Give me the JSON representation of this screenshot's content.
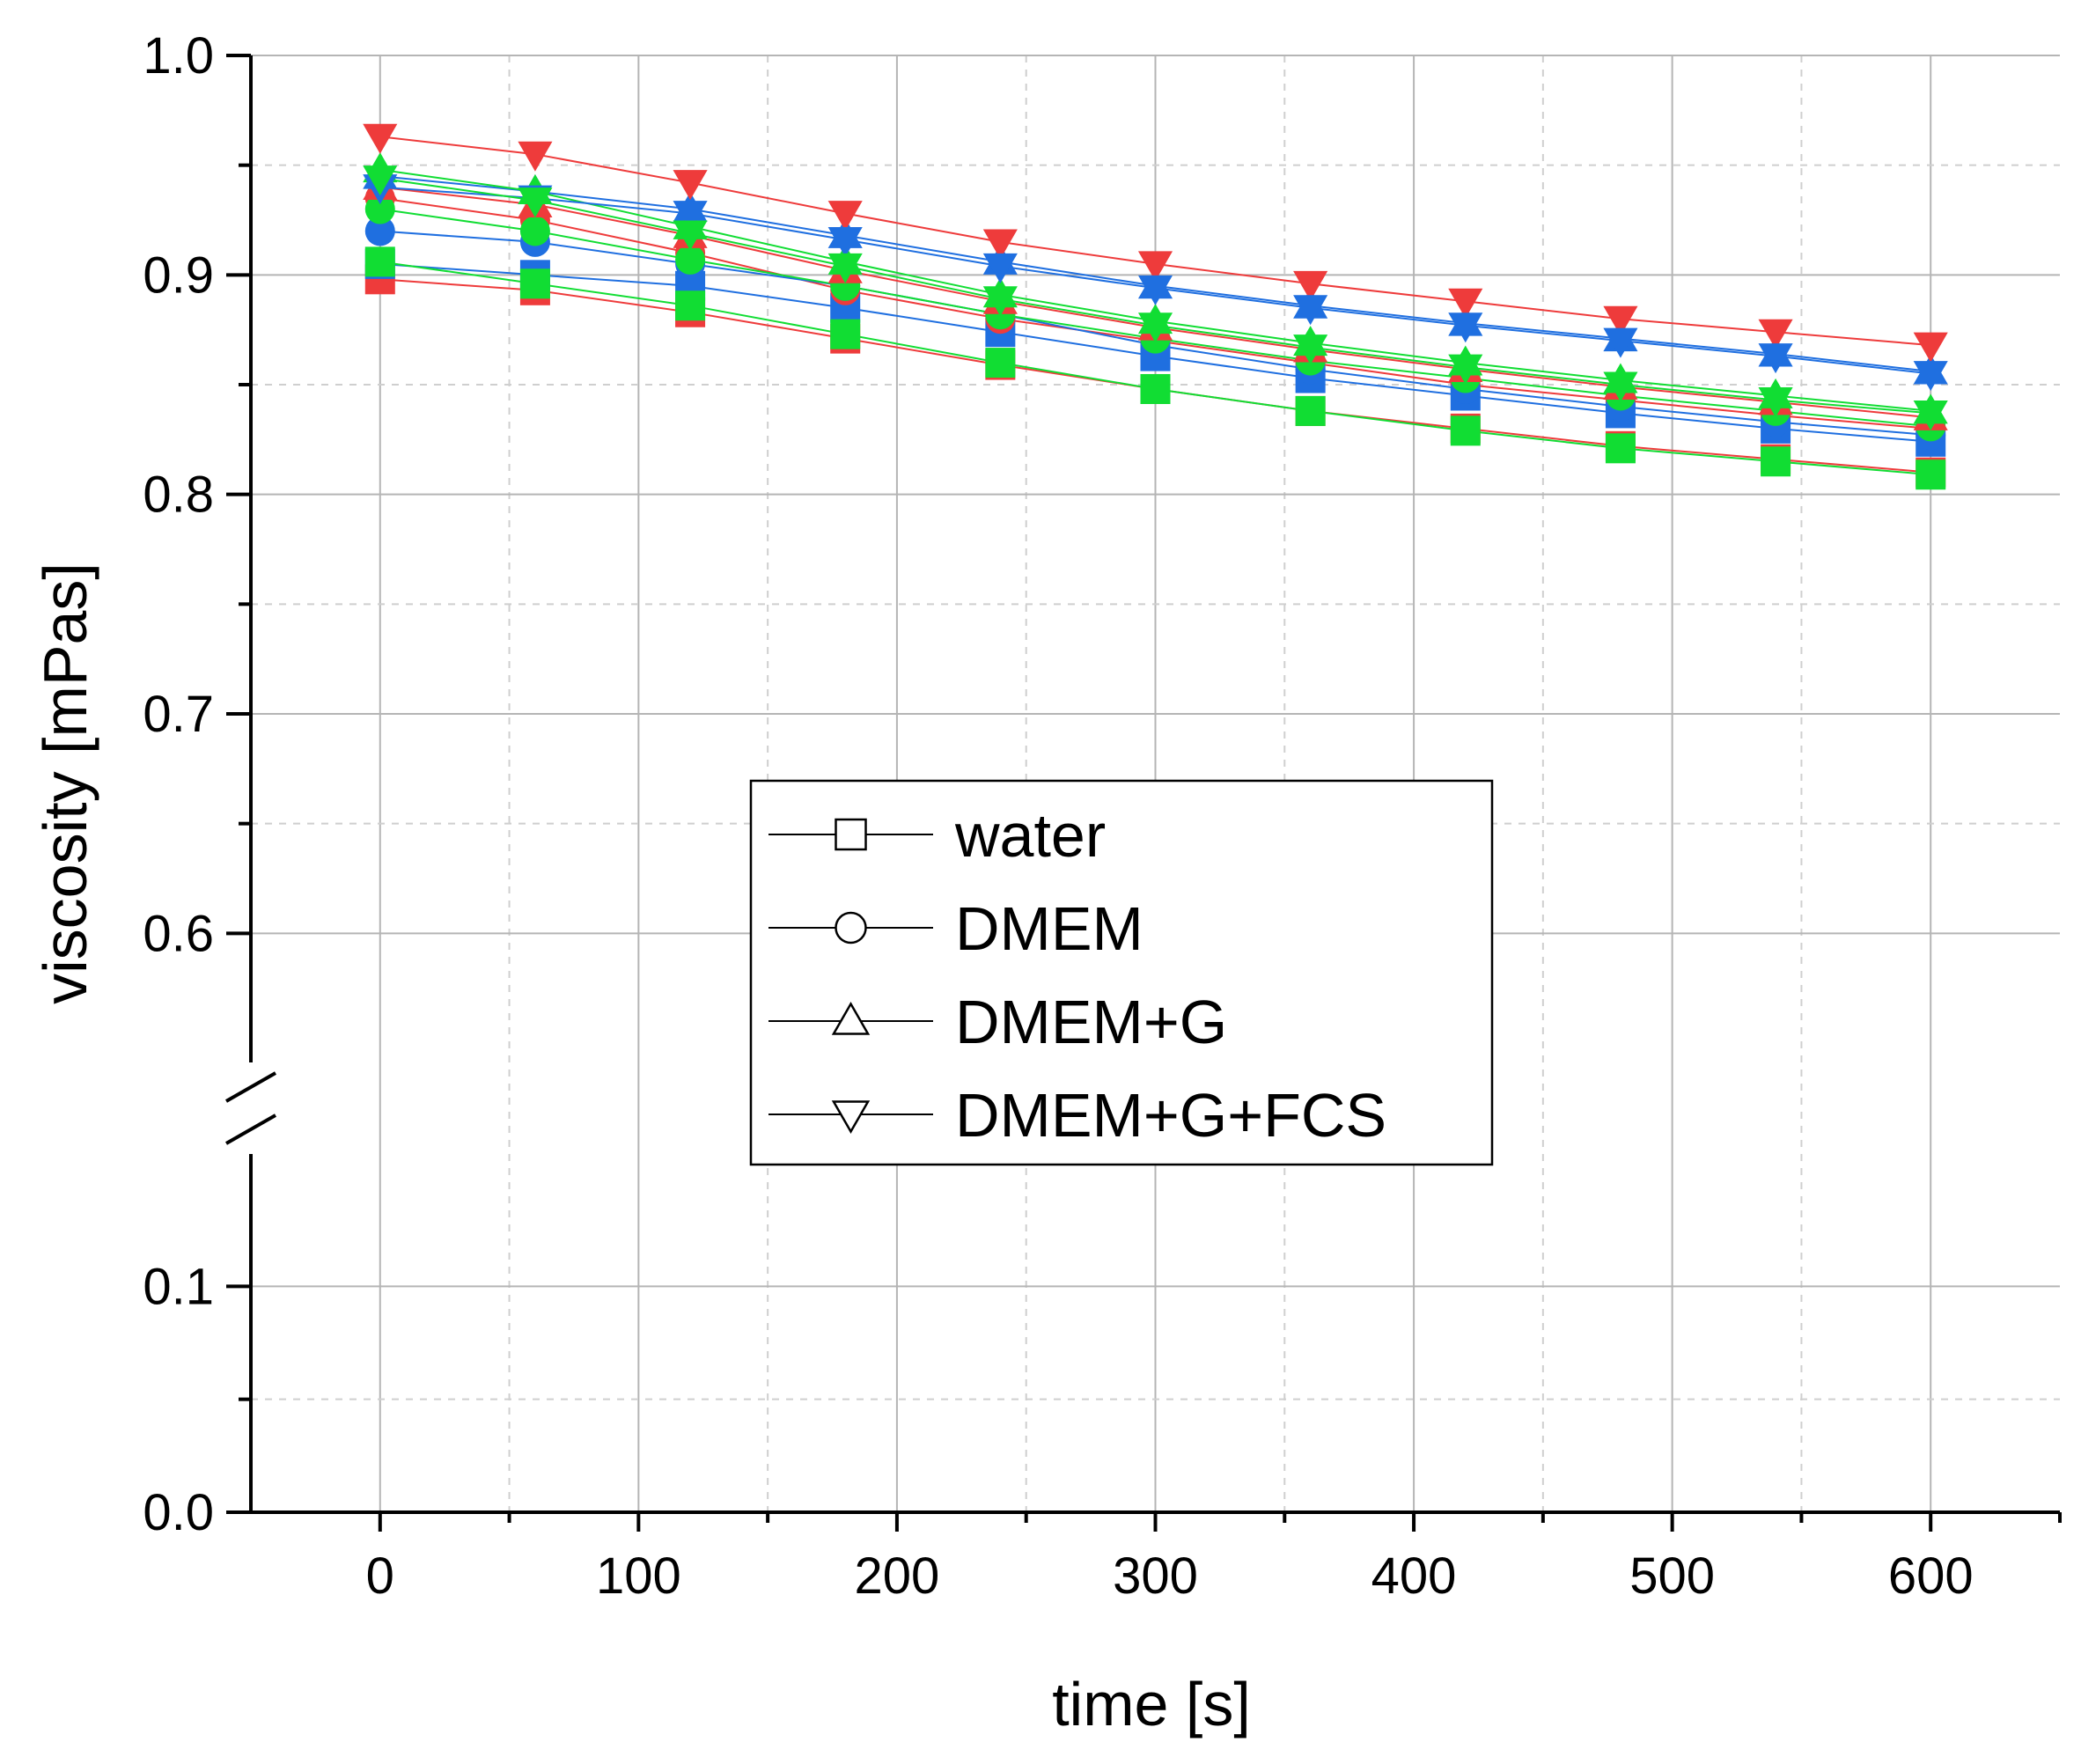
{
  "chart_data": {
    "type": "line",
    "xlabel": "time [s]",
    "ylabel": "viscosity [mPas]",
    "xlim": [
      -50,
      650
    ],
    "ylim_upper": [
      0.55,
      1.0
    ],
    "ylim_lower": [
      0.0,
      0.15
    ],
    "x_ticks": [
      0,
      100,
      200,
      300,
      400,
      500,
      600
    ],
    "x_tick_labels": [
      "0",
      "100",
      "200",
      "300",
      "400",
      "500",
      "600"
    ],
    "y_ticks_upper": [
      0.6,
      0.7,
      0.8,
      0.9,
      1.0
    ],
    "y_tick_labels_upper": [
      "0.6",
      "0.7",
      "0.8",
      "0.9",
      "1.0"
    ],
    "y_ticks_lower": [
      0.0,
      0.1
    ],
    "y_tick_labels_lower": [
      "0.0",
      "0.1"
    ],
    "axis_break": true,
    "grid": true,
    "legend_position": "center",
    "legend": [
      {
        "label": "water",
        "marker": "square"
      },
      {
        "label": "DMEM",
        "marker": "circle"
      },
      {
        "label": "DMEM+G",
        "marker": "triangle-up"
      },
      {
        "label": "DMEM+G+FCS",
        "marker": "triangle-down"
      }
    ],
    "x": [
      0,
      60,
      120,
      180,
      240,
      300,
      360,
      420,
      480,
      540,
      600
    ],
    "series": [
      {
        "name": "water",
        "run": "red",
        "color": "#ee3b3b",
        "marker": "square",
        "values": [
          0.898,
          0.893,
          0.883,
          0.871,
          0.859,
          0.848,
          0.838,
          0.83,
          0.822,
          0.816,
          0.81
        ]
      },
      {
        "name": "water",
        "run": "blue",
        "color": "#1f6fe0",
        "marker": "square",
        "values": [
          0.905,
          0.9,
          0.895,
          0.885,
          0.874,
          0.863,
          0.853,
          0.845,
          0.837,
          0.83,
          0.824
        ]
      },
      {
        "name": "water",
        "run": "green",
        "color": "#11dd33",
        "marker": "square",
        "values": [
          0.906,
          0.896,
          0.886,
          0.873,
          0.86,
          0.848,
          0.838,
          0.829,
          0.821,
          0.815,
          0.809
        ]
      },
      {
        "name": "DMEM",
        "run": "red",
        "color": "#ee3b3b",
        "marker": "circle",
        "values": [
          0.935,
          0.925,
          0.91,
          0.893,
          0.88,
          0.87,
          0.86,
          0.85,
          0.843,
          0.836,
          0.83
        ]
      },
      {
        "name": "DMEM",
        "run": "blue",
        "color": "#1f6fe0",
        "marker": "circle",
        "values": [
          0.92,
          0.915,
          0.905,
          0.895,
          0.882,
          0.868,
          0.857,
          0.848,
          0.84,
          0.833,
          0.827
        ]
      },
      {
        "name": "DMEM",
        "run": "green",
        "color": "#11dd33",
        "marker": "circle",
        "values": [
          0.93,
          0.92,
          0.907,
          0.895,
          0.882,
          0.871,
          0.861,
          0.853,
          0.845,
          0.838,
          0.831
        ]
      },
      {
        "name": "DMEM+G",
        "run": "red",
        "color": "#ee3b3b",
        "marker": "triangle-up",
        "values": [
          0.94,
          0.932,
          0.918,
          0.902,
          0.888,
          0.876,
          0.866,
          0.857,
          0.849,
          0.842,
          0.835
        ]
      },
      {
        "name": "DMEM+G",
        "run": "blue",
        "color": "#1f6fe0",
        "marker": "triangle-up",
        "values": [
          0.945,
          0.938,
          0.93,
          0.918,
          0.906,
          0.895,
          0.886,
          0.878,
          0.871,
          0.864,
          0.856
        ]
      },
      {
        "name": "DMEM+G",
        "run": "green",
        "color": "#11dd33",
        "marker": "triangle-up",
        "values": [
          0.948,
          0.938,
          0.922,
          0.906,
          0.891,
          0.879,
          0.869,
          0.86,
          0.852,
          0.845,
          0.838
        ]
      },
      {
        "name": "DMEM+G+FCS",
        "run": "red",
        "color": "#ee3b3b",
        "marker": "triangle-down",
        "values": [
          0.963,
          0.955,
          0.942,
          0.928,
          0.915,
          0.905,
          0.896,
          0.888,
          0.88,
          0.874,
          0.868
        ]
      },
      {
        "name": "DMEM+G+FCS",
        "run": "blue",
        "color": "#1f6fe0",
        "marker": "triangle-down",
        "values": [
          0.94,
          0.935,
          0.928,
          0.916,
          0.904,
          0.894,
          0.885,
          0.877,
          0.87,
          0.863,
          0.855
        ]
      },
      {
        "name": "DMEM+G+FCS",
        "run": "green",
        "color": "#11dd33",
        "marker": "triangle-down",
        "values": [
          0.944,
          0.934,
          0.919,
          0.904,
          0.889,
          0.877,
          0.867,
          0.858,
          0.85,
          0.843,
          0.837
        ]
      }
    ]
  }
}
